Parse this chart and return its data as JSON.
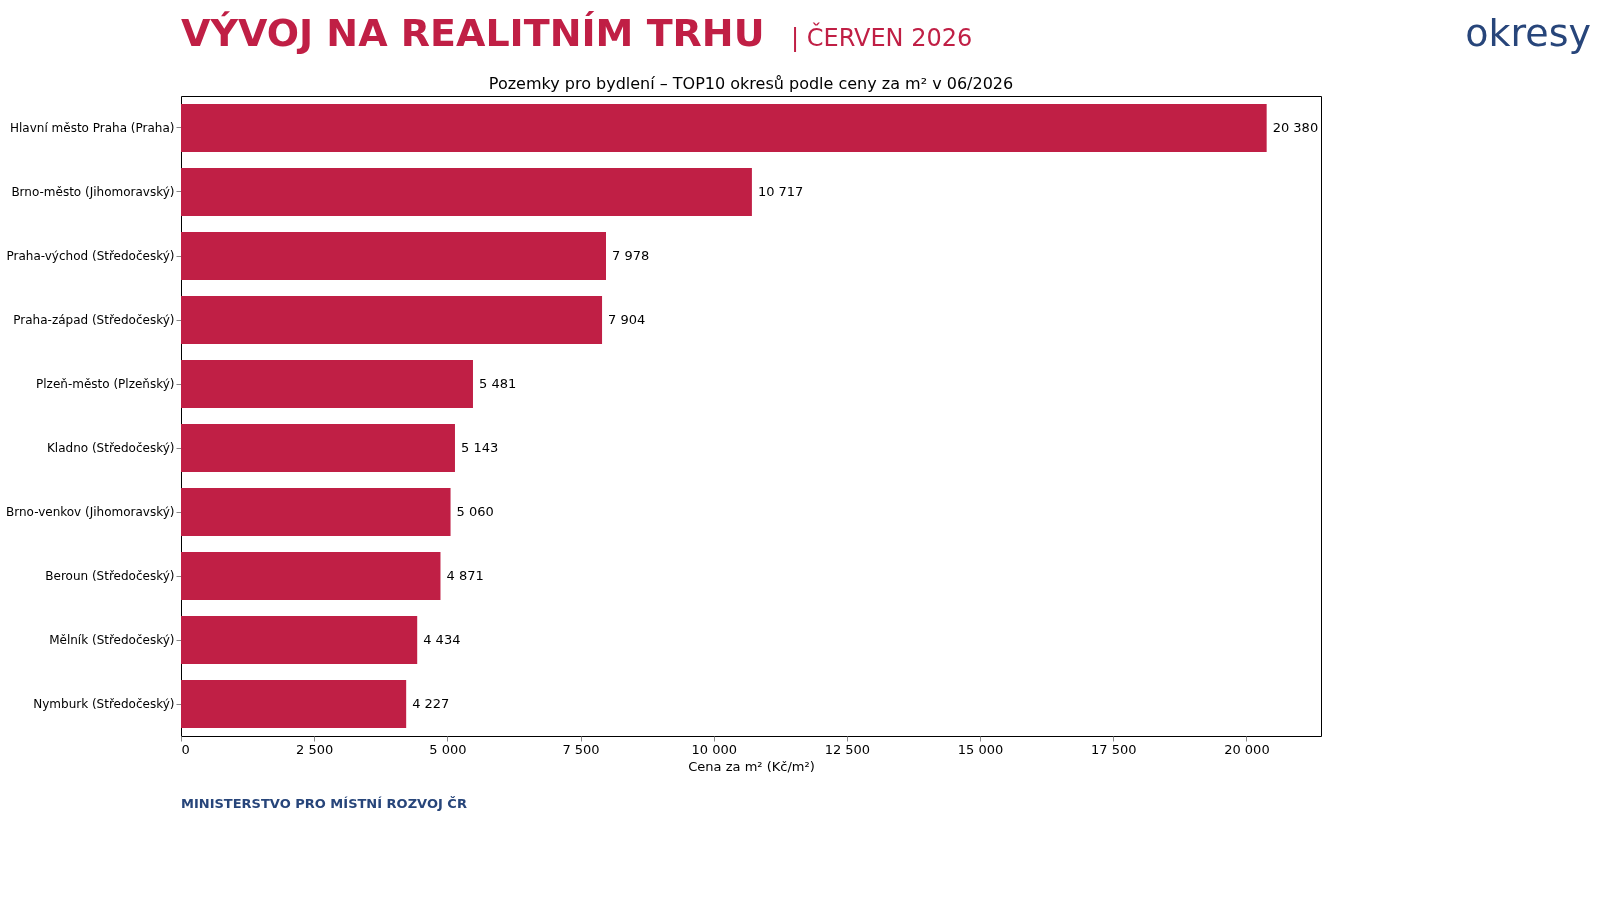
{
  "chart_data": {
    "type": "bar",
    "orientation": "horizontal",
    "title": "Pozemky pro bydlení – TOP10 okresů podle ceny za m² v 06/2026",
    "xlabel": "Cena za m² (Kč/m²)",
    "categories": [
      "Hlavní město Praha (Praha)",
      "Brno-město (Jihomoravský)",
      "Praha-východ (Středočeský)",
      "Praha-západ (Středočeský)",
      "Plzeň-město (Plzeňský)",
      "Kladno (Středočeský)",
      "Brno-venkov (Jihomoravský)",
      "Beroun (Středočeský)",
      "Mělník (Středočeský)",
      "Nymburk (Středočeský)"
    ],
    "values": [
      20380,
      10717,
      7978,
      7904,
      5481,
      5143,
      5060,
      4871,
      4434,
      4227
    ],
    "value_labels": [
      "20 380",
      "10 717",
      "7 978",
      "7 904",
      "5 481",
      "5 143",
      "5 060",
      "4 871",
      "4 434",
      "4 227"
    ],
    "color": "#c01f45",
    "xlim": [
      0,
      21400
    ],
    "xticks": [
      0,
      {
        "value": 2500,
        "label": "2 500"
      },
      {
        "value": 5000,
        "label": "5 000"
      },
      {
        "value": 7500,
        "label": "7 500"
      },
      {
        "value": 10000,
        "label": "10 000"
      },
      {
        "value": 12500,
        "label": "12 500"
      },
      {
        "value": 15000,
        "label": "15 000"
      },
      {
        "value": 17500,
        "label": "17 500"
      },
      {
        "value": 20000,
        "label": "20 000"
      }
    ],
    "grid": false,
    "annotations": [
      "VÝVOJ NA REALITNÍM TRHU",
      "| ČERVEN 2026",
      "okresy",
      "MINISTERSTVO PRO MÍSTNÍ ROZVOJ ČR"
    ]
  }
}
